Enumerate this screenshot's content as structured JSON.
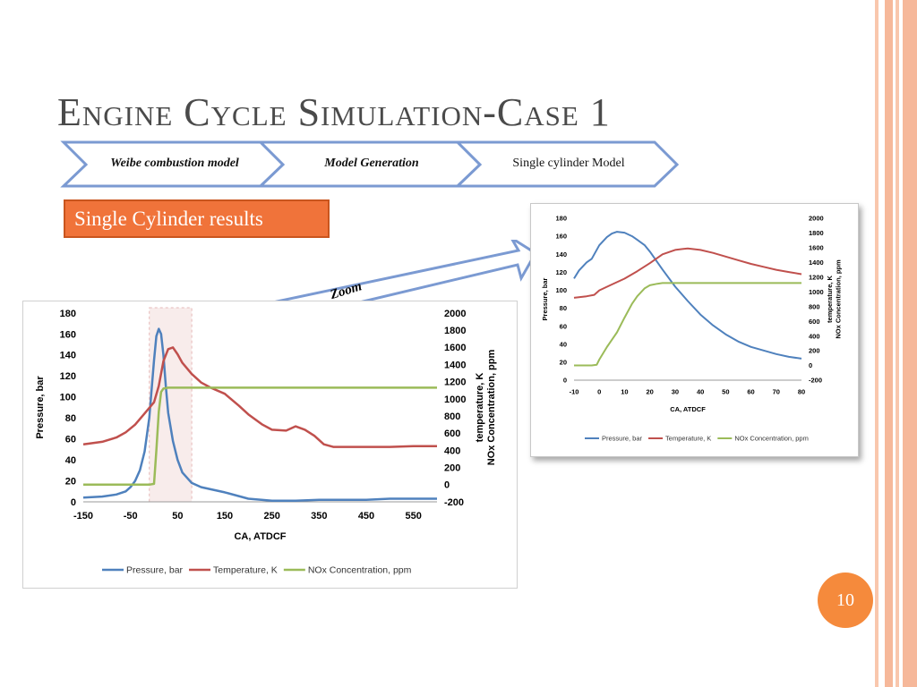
{
  "slide": {
    "title": "Engine Cycle Simulation-Case 1",
    "page_number": "10",
    "colors": {
      "accent": "#f58a3c",
      "stripe": "#f6b89a",
      "chevron": "#7b9ad2",
      "pressure": "#4f81bd",
      "temperature": "#c0504d",
      "nox": "#9bbb59"
    }
  },
  "process": {
    "steps": [
      {
        "label": "Weibe combustion model",
        "emphasis": true
      },
      {
        "label": "Model Generation",
        "emphasis": true
      },
      {
        "label": "Single cylinder Model",
        "emphasis": false
      }
    ]
  },
  "results_label": "Single Cylinder results",
  "zoom_label": "Zoom",
  "chart_data": [
    {
      "type": "line",
      "id": "full-cycle",
      "xlabel": "CA, ATDCF",
      "ylabel": "Pressure, bar",
      "y2label": [
        "temperature, K",
        "NOx Concentration, ppm"
      ],
      "xlim": [
        -150,
        600
      ],
      "xticks": [
        -150,
        -50,
        50,
        150,
        250,
        350,
        450,
        550
      ],
      "ylim": [
        0,
        180
      ],
      "yticks": [
        0,
        20,
        40,
        60,
        80,
        100,
        120,
        140,
        160,
        180
      ],
      "y2lim": [
        -200,
        2000
      ],
      "y2ticks": [
        -200,
        0,
        200,
        400,
        600,
        800,
        1000,
        1200,
        1400,
        1600,
        1800,
        2000
      ],
      "legend": "bottom",
      "grid": false,
      "highlight_range": [
        -10,
        80
      ],
      "series": [
        {
          "name": "Pressure, bar",
          "axis": "left",
          "color": "#4f81bd",
          "x": [
            -150,
            -110,
            -80,
            -60,
            -50,
            -40,
            -30,
            -20,
            -10,
            0,
            5,
            10,
            15,
            20,
            25,
            30,
            40,
            50,
            60,
            80,
            100,
            150,
            200,
            250,
            300,
            350,
            400,
            450,
            500,
            550,
            600
          ],
          "y": [
            4,
            5,
            7,
            10,
            14,
            20,
            30,
            48,
            80,
            135,
            158,
            165,
            160,
            140,
            110,
            85,
            58,
            40,
            28,
            18,
            14,
            9,
            3,
            1,
            1,
            2,
            2,
            2,
            3,
            3,
            3
          ]
        },
        {
          "name": "Temperature, K",
          "axis": "right",
          "color": "#c0504d",
          "x": [
            -150,
            -110,
            -80,
            -60,
            -40,
            -20,
            0,
            10,
            20,
            30,
            40,
            50,
            60,
            80,
            100,
            120,
            150,
            180,
            200,
            230,
            250,
            280,
            300,
            320,
            340,
            360,
            380,
            400,
            450,
            500,
            550,
            600
          ],
          "y": [
            470,
            500,
            550,
            610,
            700,
            830,
            960,
            1150,
            1440,
            1580,
            1600,
            1520,
            1420,
            1290,
            1190,
            1130,
            1060,
            920,
            820,
            700,
            640,
            630,
            680,
            640,
            570,
            470,
            440,
            440,
            440,
            440,
            450,
            450
          ]
        },
        {
          "name": "NOx Concentration, ppm",
          "axis": "right",
          "color": "#9bbb59",
          "x": [
            -150,
            -50,
            -10,
            0,
            5,
            10,
            15,
            20,
            30,
            50,
            100,
            200,
            300,
            400,
            500,
            600
          ],
          "y": [
            0,
            0,
            0,
            10,
            400,
            850,
            1080,
            1120,
            1130,
            1130,
            1130,
            1130,
            1130,
            1130,
            1130,
            1130
          ]
        }
      ]
    },
    {
      "type": "line",
      "id": "zoomed",
      "xlabel": "CA, ATDCF",
      "ylabel": "Pressure, bar",
      "y2label": [
        "temperature, K",
        "NOx Concentration, ppm"
      ],
      "xlim": [
        -10,
        80
      ],
      "xticks": [
        -10,
        0,
        10,
        20,
        30,
        40,
        50,
        60,
        70,
        80
      ],
      "ylim": [
        0,
        180
      ],
      "yticks": [
        0,
        20,
        40,
        60,
        80,
        100,
        120,
        140,
        160,
        180
      ],
      "y2lim": [
        -200,
        2000
      ],
      "y2ticks": [
        -200,
        0,
        200,
        400,
        600,
        800,
        1000,
        1200,
        1400,
        1600,
        1800,
        2000
      ],
      "legend": "bottom",
      "grid": false,
      "series": [
        {
          "name": "Pressure, bar",
          "axis": "left",
          "color": "#4f81bd",
          "x": [
            -10,
            -8,
            -5,
            -3,
            0,
            3,
            5,
            7,
            10,
            13,
            15,
            18,
            20,
            25,
            30,
            35,
            40,
            45,
            50,
            55,
            60,
            65,
            70,
            75,
            80
          ],
          "y": [
            113,
            122,
            131,
            135,
            150,
            159,
            163,
            165,
            164,
            160,
            156,
            150,
            143,
            123,
            104,
            88,
            73,
            61,
            51,
            43,
            37,
            33,
            29,
            26,
            24
          ]
        },
        {
          "name": "Temperature, K",
          "axis": "right",
          "color": "#c0504d",
          "x": [
            -10,
            -5,
            -2,
            0,
            5,
            10,
            15,
            20,
            25,
            30,
            35,
            40,
            45,
            50,
            55,
            60,
            65,
            70,
            75,
            80
          ],
          "y": [
            920,
            940,
            960,
            1020,
            1100,
            1180,
            1280,
            1390,
            1510,
            1570,
            1590,
            1570,
            1530,
            1480,
            1430,
            1380,
            1340,
            1300,
            1270,
            1240
          ]
        },
        {
          "name": "NOx Concentration, ppm",
          "axis": "right",
          "color": "#9bbb59",
          "x": [
            -10,
            -3,
            -1,
            0,
            3,
            7,
            10,
            13,
            15,
            18,
            20,
            23,
            25,
            30,
            40,
            50,
            60,
            70,
            80
          ],
          "y": [
            0,
            0,
            10,
            80,
            250,
            450,
            650,
            840,
            940,
            1050,
            1090,
            1110,
            1120,
            1120,
            1120,
            1120,
            1120,
            1120,
            1120
          ]
        }
      ]
    }
  ]
}
